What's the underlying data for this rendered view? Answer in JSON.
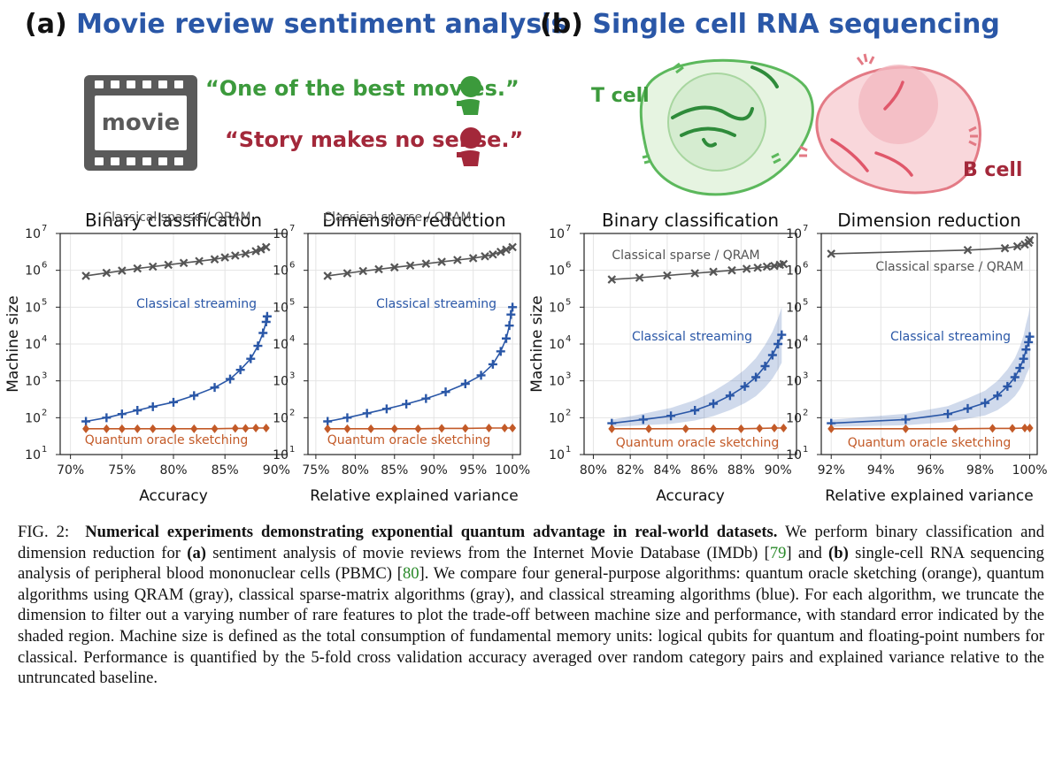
{
  "panel_a": {
    "letter": "(a)",
    "title": "Movie review sentiment analysis",
    "movie_label": "movie",
    "quote_pos": "“One of the best movies.”",
    "quote_neg": "“Story makes no sense.”"
  },
  "panel_b": {
    "letter": "(b)",
    "title": "Single cell RNA sequencing",
    "t_cell": "T cell",
    "b_cell": "B cell"
  },
  "colors": {
    "blue": "#2a57a7",
    "green": "#3c9a3c",
    "red": "#a3283a",
    "gray": "#555555",
    "orange": "#c35a28"
  },
  "axis": {
    "ylabel": "Machine size"
  },
  "chart_data": [
    {
      "type": "line",
      "title": "Binary classification",
      "xlabel": "Accuracy",
      "xticks": [
        "70%",
        "75%",
        "80%",
        "85%",
        "90%"
      ],
      "xlim": [
        69,
        91
      ],
      "ylog": true,
      "ylim_exp": [
        1,
        7
      ],
      "yticks": [
        "10",
        "10",
        "10",
        "10",
        "10",
        "10",
        "10"
      ],
      "ytick_exp": [
        "1",
        "2",
        "3",
        "4",
        "5",
        "6",
        "7"
      ],
      "series": [
        {
          "name": "Classical sparse / QRAM",
          "color": "gray",
          "marker": "x",
          "x": [
            71.5,
            73.5,
            75,
            76.5,
            78,
            79.5,
            81,
            82.5,
            84,
            85,
            86,
            87,
            88,
            88.5,
            89
          ],
          "logy": [
            5.85,
            5.93,
            5.99,
            6.05,
            6.1,
            6.15,
            6.2,
            6.25,
            6.3,
            6.35,
            6.4,
            6.45,
            6.52,
            6.57,
            6.63
          ]
        },
        {
          "name": "Classical streaming",
          "color": "blue",
          "marker": "+",
          "x": [
            71.5,
            73.5,
            75,
            76.5,
            78,
            80,
            82,
            84,
            85.5,
            86.5,
            87.5,
            88.2,
            88.7,
            89,
            89.1
          ],
          "logy": [
            1.9,
            2.0,
            2.1,
            2.2,
            2.3,
            2.42,
            2.6,
            2.82,
            3.05,
            3.3,
            3.6,
            3.95,
            4.3,
            4.6,
            4.75
          ]
        },
        {
          "name": "Quantum oracle sketching",
          "color": "orange",
          "marker": "d",
          "x": [
            71.5,
            73.5,
            75,
            76.5,
            78,
            80,
            82,
            84,
            86,
            87,
            88,
            89
          ],
          "logy": [
            1.7,
            1.7,
            1.7,
            1.7,
            1.7,
            1.7,
            1.7,
            1.7,
            1.71,
            1.71,
            1.72,
            1.72
          ]
        }
      ]
    },
    {
      "type": "line",
      "title": "Dimension reduction",
      "xlabel": "Relative explained variance",
      "xticks": [
        "75%",
        "80%",
        "85%",
        "90%",
        "95%",
        "100%"
      ],
      "xlim": [
        74,
        101
      ],
      "ylog": true,
      "ylim_exp": [
        1,
        7
      ],
      "series": [
        {
          "name": "Classical sparse / QRAM",
          "color": "gray",
          "marker": "x",
          "x": [
            76.5,
            79,
            81,
            83,
            85,
            87,
            89,
            91,
            93,
            95,
            96.5,
            97.5,
            98.5,
            99.2,
            100
          ],
          "logy": [
            5.85,
            5.92,
            5.98,
            6.03,
            6.08,
            6.13,
            6.18,
            6.23,
            6.28,
            6.33,
            6.38,
            6.43,
            6.5,
            6.56,
            6.63
          ]
        },
        {
          "name": "Classical streaming",
          "color": "blue",
          "marker": "+",
          "x": [
            76.5,
            79,
            81.5,
            84,
            86.5,
            89,
            91.5,
            94,
            96,
            97.5,
            98.5,
            99.2,
            99.6,
            99.8,
            100
          ],
          "logy": [
            1.9,
            2.0,
            2.12,
            2.24,
            2.37,
            2.52,
            2.7,
            2.92,
            3.15,
            3.45,
            3.8,
            4.15,
            4.5,
            4.8,
            5.0
          ]
        },
        {
          "name": "Quantum oracle sketching",
          "color": "orange",
          "marker": "d",
          "x": [
            76.5,
            79,
            82,
            85,
            88,
            91,
            94,
            97,
            99,
            100
          ],
          "logy": [
            1.7,
            1.7,
            1.7,
            1.7,
            1.7,
            1.71,
            1.71,
            1.72,
            1.72,
            1.72
          ]
        }
      ]
    },
    {
      "type": "line",
      "title": "Binary classification",
      "xlabel": "Accuracy",
      "xticks": [
        "80%",
        "82%",
        "84%",
        "86%",
        "88%",
        "90%"
      ],
      "xlim": [
        79.5,
        91
      ],
      "ylog": true,
      "ylim_exp": [
        1,
        7
      ],
      "series": [
        {
          "name": "Classical sparse / QRAM",
          "color": "gray",
          "marker": "x",
          "x": [
            81,
            82.5,
            84,
            85.5,
            86.5,
            87.5,
            88.3,
            88.9,
            89.4,
            89.8,
            90.1,
            90.3
          ],
          "logy": [
            5.75,
            5.8,
            5.86,
            5.92,
            5.96,
            6.0,
            6.04,
            6.07,
            6.1,
            6.12,
            6.15,
            6.17
          ]
        },
        {
          "name": "Classical streaming",
          "color": "blue",
          "marker": "+",
          "shaded": true,
          "x": [
            81,
            82.7,
            84.2,
            85.5,
            86.5,
            87.4,
            88.2,
            88.8,
            89.3,
            89.7,
            90.0,
            90.2
          ],
          "logy": [
            1.85,
            1.95,
            2.05,
            2.2,
            2.38,
            2.6,
            2.85,
            3.1,
            3.4,
            3.7,
            4.0,
            4.25
          ]
        },
        {
          "name": "Quantum oracle sketching",
          "color": "orange",
          "marker": "d",
          "x": [
            81,
            83,
            85,
            86.5,
            88,
            89,
            89.8,
            90.3
          ],
          "logy": [
            1.7,
            1.7,
            1.7,
            1.7,
            1.7,
            1.71,
            1.72,
            1.72
          ]
        }
      ]
    },
    {
      "type": "line",
      "title": "Dimension reduction",
      "xlabel": "Relative explained variance",
      "xticks": [
        "92%",
        "94%",
        "96%",
        "98%",
        "100%"
      ],
      "xlim": [
        91.6,
        100.3
      ],
      "ylog": true,
      "ylim_exp": [
        1,
        7
      ],
      "series": [
        {
          "name": "Classical sparse / QRAM",
          "color": "gray",
          "marker": "x",
          "x": [
            92,
            97.5,
            99,
            99.5,
            99.8,
            99.95,
            100
          ],
          "logy": [
            6.45,
            6.55,
            6.6,
            6.65,
            6.7,
            6.75,
            6.82
          ]
        },
        {
          "name": "Classical streaming",
          "color": "blue",
          "marker": "+",
          "shaded": true,
          "x": [
            92,
            95,
            96.7,
            97.5,
            98.2,
            98.7,
            99.1,
            99.4,
            99.6,
            99.75,
            99.85,
            99.95,
            100
          ],
          "logy": [
            1.85,
            1.95,
            2.1,
            2.25,
            2.4,
            2.6,
            2.85,
            3.1,
            3.35,
            3.6,
            3.85,
            4.05,
            4.2
          ]
        },
        {
          "name": "Quantum oracle sketching",
          "color": "orange",
          "marker": "d",
          "x": [
            92,
            95,
            97,
            98.5,
            99.3,
            99.8,
            100
          ],
          "logy": [
            1.7,
            1.7,
            1.7,
            1.71,
            1.71,
            1.72,
            1.72
          ]
        }
      ]
    }
  ],
  "caption": {
    "fig": "FIG. 2:",
    "bold_title": "Numerical experiments demonstrating exponential quantum advantage in real-world datasets.",
    "t1": "We perform binary classification and dimension reduction for",
    "a_label": "(a)",
    "t2": "sentiment analysis of movie reviews from the Internet Movie Database (IMDb) [",
    "ref1": "79",
    "t3": "] and",
    "b_label": "(b)",
    "t4": "single-cell RNA sequencing analysis of peripheral blood mononuclear cells (PBMC) [",
    "ref2": "80",
    "t5": "]. We compare four general-purpose algorithms: quantum oracle sketching (orange), quantum algorithms using QRAM (gray), classical sparse-matrix algorithms (gray), and classical streaming algorithms (blue). For each algorithm, we truncate the dimension to filter out a varying number of rare features to plot the trade-off between machine size and performance, with standard error indicated by the shaded region. Machine size is defined as the total consumption of fundamental memory units: logical qubits for quantum and floating-point numbers for classical. Performance is quantified by the 5-fold cross validation accuracy averaged over random category pairs and explained variance relative to the untruncated baseline."
  }
}
